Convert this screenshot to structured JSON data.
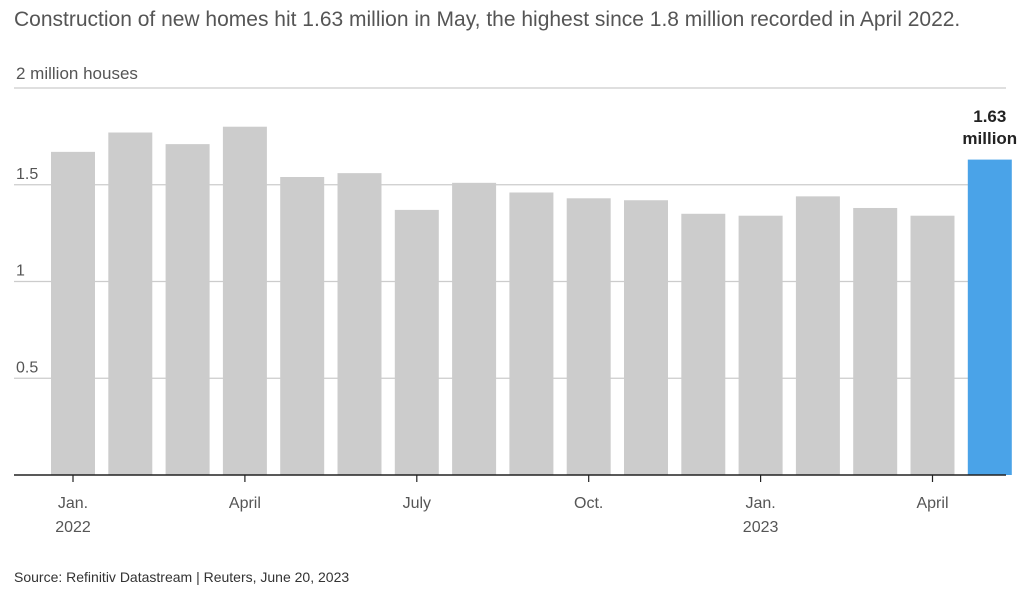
{
  "subtitle": "Construction of new homes hit 1.63 million in May, the highest since 1.8 million recorded in April 2022.",
  "units_label": "2 million houses",
  "source": "Source: Refinitiv Datastream | Reuters, June 20, 2023",
  "colors": {
    "bar": "#cccccc",
    "highlight": "#4aa3e8",
    "grid": "#cccccc",
    "axis": "#222222"
  },
  "chart_data": {
    "type": "bar",
    "categories": [
      "Jan. 2022",
      "Feb. 2022",
      "Mar. 2022",
      "April 2022",
      "May 2022",
      "June 2022",
      "July 2022",
      "Aug. 2022",
      "Sept. 2022",
      "Oct. 2022",
      "Nov. 2022",
      "Dec. 2022",
      "Jan. 2023",
      "Feb. 2023",
      "Mar. 2023",
      "April 2023",
      "May 2023"
    ],
    "values": [
      1.67,
      1.77,
      1.71,
      1.8,
      1.54,
      1.56,
      1.37,
      1.51,
      1.46,
      1.43,
      1.42,
      1.35,
      1.34,
      1.44,
      1.38,
      1.34,
      1.63
    ],
    "highlight_index": 16,
    "annotation": {
      "line1": "1.63",
      "line2": "million"
    },
    "ylim": [
      0,
      2
    ],
    "yticks": [
      {
        "value": 0.5,
        "label": "0.5"
      },
      {
        "value": 1,
        "label": "1"
      },
      {
        "value": 1.5,
        "label": "1.5"
      },
      {
        "value": 2,
        "label": ""
      }
    ],
    "xticks": [
      {
        "index": 0,
        "line1": "Jan.",
        "line2": "2022"
      },
      {
        "index": 3,
        "line1": "April",
        "line2": ""
      },
      {
        "index": 6,
        "line1": "July",
        "line2": ""
      },
      {
        "index": 9,
        "line1": "Oct.",
        "line2": ""
      },
      {
        "index": 12,
        "line1": "Jan.",
        "line2": "2023"
      },
      {
        "index": 15,
        "line1": "April",
        "line2": ""
      }
    ],
    "grid": true,
    "legend": "none"
  }
}
